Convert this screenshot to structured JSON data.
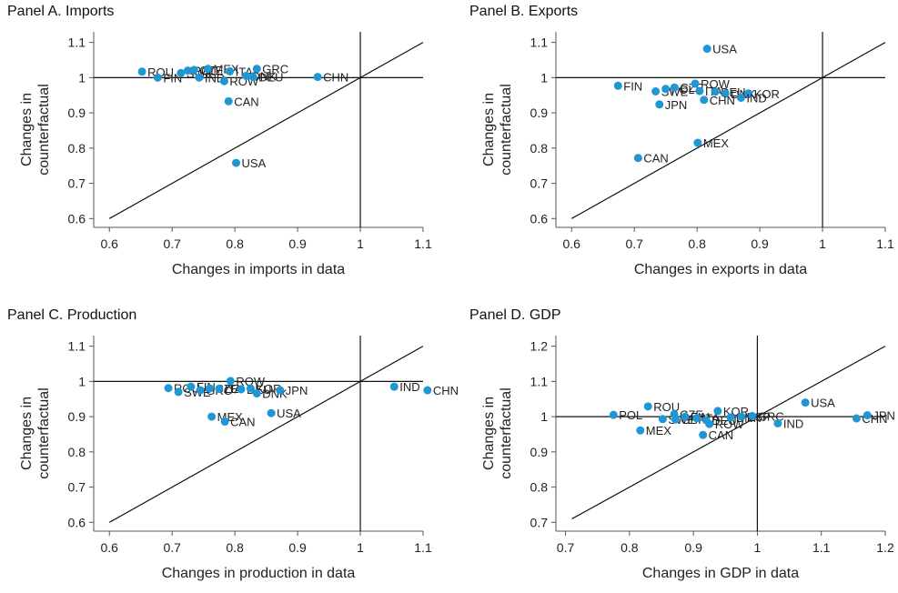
{
  "chart_data": [
    {
      "type": "scatter",
      "title": "Panel A. Imports",
      "xlabel": "Changes in imports in data",
      "ylabel": [
        "Changes in",
        "counterfactual"
      ],
      "xlim": [
        0.575,
        1.1
      ],
      "ylim": [
        0.575,
        1.13
      ],
      "xticks": [
        0.6,
        0.7,
        0.8,
        0.9,
        1,
        1.1
      ],
      "xtick_labels": [
        "0.6",
        "0.7",
        "0.8",
        "0.9",
        "1",
        "1.1"
      ],
      "yticks": [
        0.6,
        0.7,
        0.8,
        0.9,
        1,
        1.1
      ],
      "ytick_labels": [
        "0.6",
        "0.7",
        "0.8",
        "0.9",
        "1",
        "1.1"
      ],
      "reference_lines": {
        "hline": 1,
        "vline": 1,
        "diagonal": true
      },
      "points": [
        {
          "label": "ROU",
          "x": 0.652,
          "y": 1.017
        },
        {
          "label": "FIN",
          "x": 0.677,
          "y": 1.0
        },
        {
          "label": "SWE",
          "x": 0.714,
          "y": 1.013
        },
        {
          "label": "POL",
          "x": 0.725,
          "y": 1.02
        },
        {
          "label": "CZE",
          "x": 0.735,
          "y": 1.022
        },
        {
          "label": "MEX",
          "x": 0.757,
          "y": 1.025
        },
        {
          "label": "IND",
          "x": 0.743,
          "y": 1.0
        },
        {
          "label": "ROW",
          "x": 0.783,
          "y": 0.99
        },
        {
          "label": "ITA",
          "x": 0.792,
          "y": 1.018
        },
        {
          "label": "GRC",
          "x": 0.835,
          "y": 1.025
        },
        {
          "label": "DNK",
          "x": 0.818,
          "y": 1.005
        },
        {
          "label": "DEU",
          "x": 0.829,
          "y": 1.002
        },
        {
          "label": "CHN",
          "x": 0.932,
          "y": 1.002
        },
        {
          "label": "CAN",
          "x": 0.79,
          "y": 0.933
        },
        {
          "label": "USA",
          "x": 0.802,
          "y": 0.758
        }
      ]
    },
    {
      "type": "scatter",
      "title": "Panel B. Exports",
      "xlabel": "Changes in exports in data",
      "ylabel": [
        "Changes in",
        "counterfactual"
      ],
      "xlim": [
        0.575,
        1.1
      ],
      "ylim": [
        0.575,
        1.13
      ],
      "xticks": [
        0.6,
        0.7,
        0.8,
        0.9,
        1,
        1.1
      ],
      "xtick_labels": [
        "0.6",
        "0.7",
        "0.8",
        "0.9",
        "1",
        "1.1"
      ],
      "yticks": [
        0.6,
        0.7,
        0.8,
        0.9,
        1,
        1.1
      ],
      "ytick_labels": [
        "0.6",
        "0.7",
        "0.8",
        "0.9",
        "1",
        "1.1"
      ],
      "reference_lines": {
        "hline": 1,
        "vline": 1,
        "diagonal": true
      },
      "points": [
        {
          "label": "USA",
          "x": 0.816,
          "y": 1.082
        },
        {
          "label": "FIN",
          "x": 0.674,
          "y": 0.977
        },
        {
          "label": "SWE",
          "x": 0.734,
          "y": 0.961
        },
        {
          "label": "POL",
          "x": 0.75,
          "y": 0.968
        },
        {
          "label": "CZE",
          "x": 0.764,
          "y": 0.972
        },
        {
          "label": "ROW",
          "x": 0.797,
          "y": 0.983
        },
        {
          "label": "ITA",
          "x": 0.804,
          "y": 0.962
        },
        {
          "label": "DEU",
          "x": 0.829,
          "y": 0.96
        },
        {
          "label": "DNK",
          "x": 0.845,
          "y": 0.955
        },
        {
          "label": "KOR",
          "x": 0.882,
          "y": 0.955
        },
        {
          "label": "IND",
          "x": 0.87,
          "y": 0.943
        },
        {
          "label": "CHN",
          "x": 0.811,
          "y": 0.937
        },
        {
          "label": "JPN",
          "x": 0.74,
          "y": 0.924
        },
        {
          "label": "MEX",
          "x": 0.801,
          "y": 0.815
        },
        {
          "label": "CAN",
          "x": 0.706,
          "y": 0.772
        }
      ]
    },
    {
      "type": "scatter",
      "title": "Panel C. Production",
      "xlabel": "Changes in production in data",
      "ylabel": [
        "Changes in",
        "counterfactual"
      ],
      "xlim": [
        0.575,
        1.1
      ],
      "ylim": [
        0.575,
        1.13
      ],
      "xticks": [
        0.6,
        0.7,
        0.8,
        0.9,
        1,
        1.1
      ],
      "xtick_labels": [
        "0.6",
        "0.7",
        "0.8",
        "0.9",
        "1",
        "1.1"
      ],
      "yticks": [
        0.6,
        0.7,
        0.8,
        0.9,
        1,
        1.1
      ],
      "ytick_labels": [
        "0.6",
        "0.7",
        "0.8",
        "0.9",
        "1",
        "1.1"
      ],
      "reference_lines": {
        "hline": 1,
        "vline": 1,
        "diagonal": true
      },
      "points": [
        {
          "label": "ROU",
          "x": 0.694,
          "y": 0.981
        },
        {
          "label": "SWE",
          "x": 0.71,
          "y": 0.97
        },
        {
          "label": "FIN",
          "x": 0.73,
          "y": 0.985
        },
        {
          "label": "GRC",
          "x": 0.745,
          "y": 0.975
        },
        {
          "label": "CZE",
          "x": 0.76,
          "y": 0.98
        },
        {
          "label": "ITA",
          "x": 0.775,
          "y": 0.979
        },
        {
          "label": "ROW",
          "x": 0.793,
          "y": 1.001
        },
        {
          "label": "DEU",
          "x": 0.81,
          "y": 0.978
        },
        {
          "label": "KOR",
          "x": 0.825,
          "y": 0.98
        },
        {
          "label": "DNK",
          "x": 0.835,
          "y": 0.966
        },
        {
          "label": "JPN",
          "x": 0.872,
          "y": 0.975
        },
        {
          "label": "USA",
          "x": 0.858,
          "y": 0.91
        },
        {
          "label": "MEX",
          "x": 0.763,
          "y": 0.9
        },
        {
          "label": "CAN",
          "x": 0.784,
          "y": 0.886
        },
        {
          "label": "IND",
          "x": 1.054,
          "y": 0.985
        },
        {
          "label": "CHN",
          "x": 1.107,
          "y": 0.975
        }
      ]
    },
    {
      "type": "scatter",
      "title": "Panel D. GDP",
      "xlabel": "Changes in GDP in data",
      "ylabel": [
        "Changes in",
        "counterfactual"
      ],
      "xlim": [
        0.685,
        1.2
      ],
      "ylim": [
        0.675,
        1.23
      ],
      "xticks": [
        0.7,
        0.8,
        0.9,
        1,
        1.1,
        1.2
      ],
      "xtick_labels": [
        "0.7",
        "0.8",
        "0.9",
        "1",
        "1.1",
        "1.2"
      ],
      "yticks": [
        0.7,
        0.8,
        0.9,
        1,
        1.1,
        1.2
      ],
      "ytick_labels": [
        "0.7",
        "0.8",
        "0.9",
        "1",
        "1.1",
        "1.2"
      ],
      "reference_lines": {
        "hline": 1,
        "vline": 1,
        "diagonal": true
      },
      "points": [
        {
          "label": "POL",
          "x": 0.775,
          "y": 1.005
        },
        {
          "label": "ROU",
          "x": 0.829,
          "y": 1.029
        },
        {
          "label": "MEX",
          "x": 0.817,
          "y": 0.961
        },
        {
          "label": "SWE",
          "x": 0.852,
          "y": 0.993
        },
        {
          "label": "CZE",
          "x": 0.87,
          "y": 1.007
        },
        {
          "label": "GBR",
          "x": 0.872,
          "y": 0.992
        },
        {
          "label": "FIN",
          "x": 0.887,
          "y": 1.0
        },
        {
          "label": "ITA",
          "x": 0.905,
          "y": 0.996
        },
        {
          "label": "DEU",
          "x": 0.92,
          "y": 0.99
        },
        {
          "label": "ROW",
          "x": 0.925,
          "y": 0.979
        },
        {
          "label": "CAN",
          "x": 0.915,
          "y": 0.948
        },
        {
          "label": "KOR",
          "x": 0.938,
          "y": 1.016
        },
        {
          "label": "DNK",
          "x": 0.958,
          "y": 0.998
        },
        {
          "label": "ESP",
          "x": 0.975,
          "y": 1.0
        },
        {
          "label": "GRC",
          "x": 0.992,
          "y": 1.002
        },
        {
          "label": "IND",
          "x": 1.032,
          "y": 0.981
        },
        {
          "label": "USA",
          "x": 1.075,
          "y": 1.04
        },
        {
          "label": "CHN",
          "x": 1.155,
          "y": 0.995
        },
        {
          "label": "JPN",
          "x": 1.172,
          "y": 1.004
        }
      ]
    }
  ],
  "colors": {
    "point": "#1f97d4",
    "axis": "#555555",
    "line": "#111111",
    "text": "#222222"
  }
}
